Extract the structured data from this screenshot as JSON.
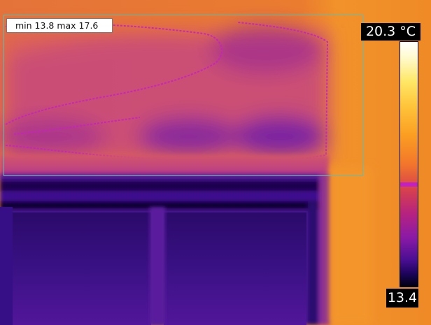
{
  "measurement": {
    "minmax_label": "min 13.8 max 17.6",
    "min": 13.8,
    "max": 17.6,
    "box_color": "#5bc0b4"
  },
  "temperature_scale": {
    "max_label": "20.3 °C",
    "min_label": "13.4",
    "max": 20.3,
    "min": 13.4,
    "unit": "°C",
    "palette": "iron",
    "marker_color": "#c11fc7"
  }
}
